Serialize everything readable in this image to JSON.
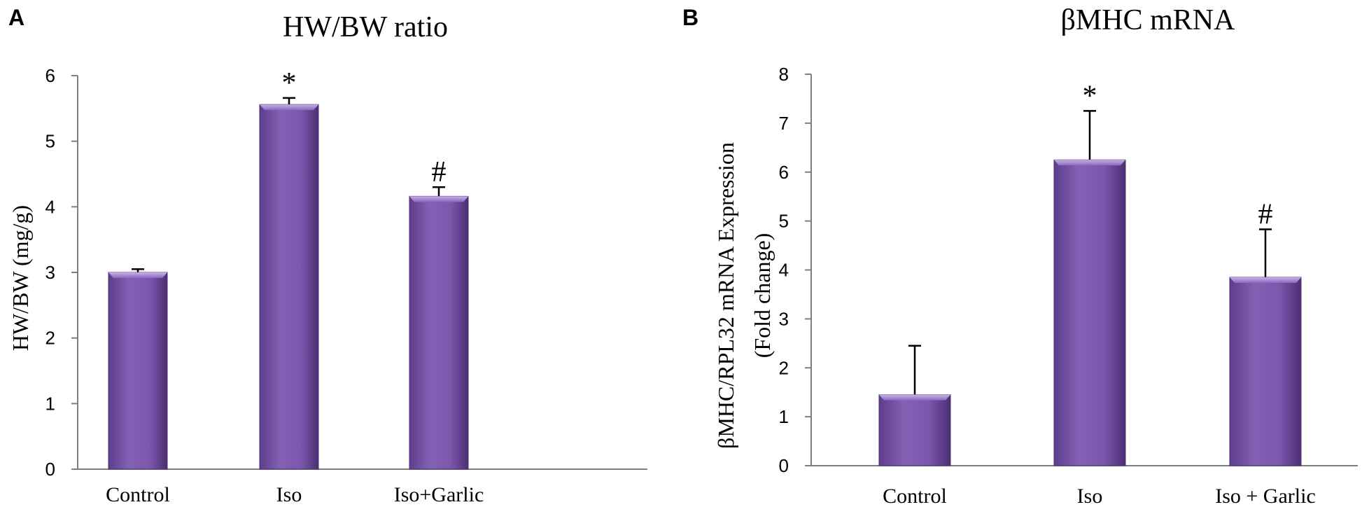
{
  "colors": {
    "bar": "#7e57b0",
    "bar_light": "#a585d1",
    "bar_edge": "#4e3275",
    "axis": "#7f7f7f"
  },
  "chart_data": [
    {
      "panel_label": "A",
      "type": "bar",
      "title": "HW/BW ratio",
      "xlabel": "",
      "ylabel": "HW/BW (mg/g)",
      "ylabel_lines": [
        "HW/BW (mg/g)"
      ],
      "categories": [
        "Control",
        "Iso",
        "Iso+Garlic"
      ],
      "values": [
        3.0,
        5.56,
        4.16
      ],
      "errors": [
        0.05,
        0.1,
        0.14
      ],
      "annotations": [
        "",
        "*",
        "#"
      ],
      "ylim": [
        0,
        6
      ],
      "yticks": [
        "0",
        "1",
        "2",
        "3",
        "4",
        "5",
        "6"
      ],
      "grid": false
    },
    {
      "panel_label": "B",
      "type": "bar",
      "title": "βMHC mRNA",
      "xlabel": "",
      "ylabel": "βMHC/RPL32 mRNA Expression (Fold change)",
      "ylabel_lines": [
        "βMHC/RPL32 mRNA Expression",
        "(Fold change)"
      ],
      "categories": [
        "Control",
        "Iso",
        "Iso + Garlic"
      ],
      "values": [
        1.45,
        6.25,
        3.85
      ],
      "errors": [
        1.0,
        1.0,
        0.98
      ],
      "annotations": [
        "",
        "*",
        "#"
      ],
      "ylim": [
        0,
        8
      ],
      "yticks": [
        "0",
        "1",
        "2",
        "3",
        "4",
        "5",
        "6",
        "7",
        "8"
      ],
      "grid": false
    }
  ]
}
